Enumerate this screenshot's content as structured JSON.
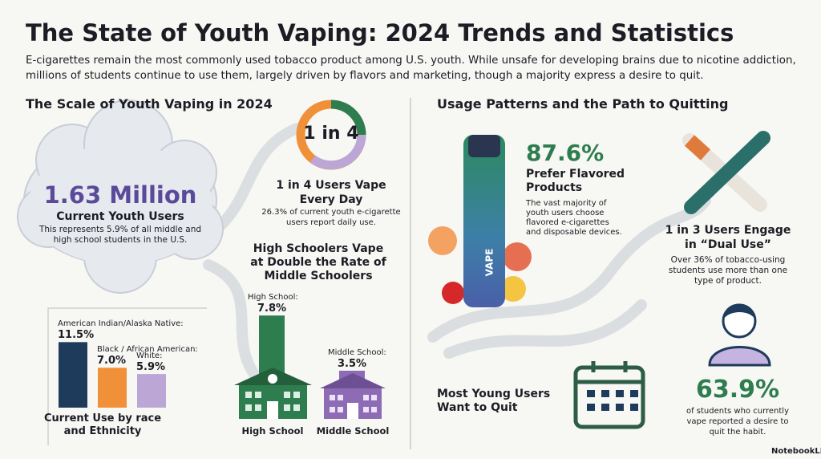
{
  "header": {
    "title": "The State of Youth Vaping: 2024 Trends and Statistics",
    "intro": "E-cigarettes remain the most commonly used tobacco product among U.S. youth. While unsafe for developing brains due to nicotine addiction, millions of students continue to use them, largely driven by flavors and marketing, though a majority express a desire to quit."
  },
  "left": {
    "heading": "The Scale of Youth Vaping in 2024",
    "cloud": {
      "value": "1.63 Million",
      "label": "Current Youth Users",
      "note": "This represents 5.9% of all middle and high school students in the U.S."
    },
    "daily": {
      "ratio": "1 in 4",
      "title": "1 in 4 Users Vape Every Day",
      "note": "26.3% of current youth e-cigarette users report daily use."
    },
    "school_chart": {
      "title": "High Schoolers Vape at Double the Rate of Middle Schoolers",
      "categories": [
        "High School:",
        "Middle School:"
      ],
      "values": [
        7.8,
        3.5
      ],
      "value_labels": [
        "7.8%",
        "3.5%"
      ],
      "colors": [
        "#2e7d4f",
        "#8e6bb5"
      ],
      "building_labels": [
        "High School",
        "Middle School"
      ]
    },
    "race_chart": {
      "title": "Current Use by race and Ethnicity",
      "categories": [
        "American Indian/Alaska Native:",
        "Black / African American:",
        "White:"
      ],
      "values": [
        11.5,
        7.0,
        5.9
      ],
      "value_labels": [
        "11.5%",
        "7.0%",
        "5.9%"
      ],
      "colors": [
        "#1f3b5c",
        "#f0913a",
        "#bba6d6"
      ]
    }
  },
  "right": {
    "heading": "Usage Patterns and the Path to Quitting",
    "flavored": {
      "value": "87.6%",
      "title": "Prefer Flavored Products",
      "note": "The vast majority of youth users choose flavored e-cigarettes and disposable devices.",
      "device_label": "VAPE"
    },
    "dual_use": {
      "title": "1 in 3 Users Engage in “Dual Use”",
      "note": "Over 36% of tobacco-using students use more than one type of product."
    },
    "quit": {
      "heading": "Most Young Users Want to Quit",
      "value": "63.9%",
      "note": "of students who currently vape reported a desire to quit the habit."
    }
  },
  "brand": "NotebookLM"
}
